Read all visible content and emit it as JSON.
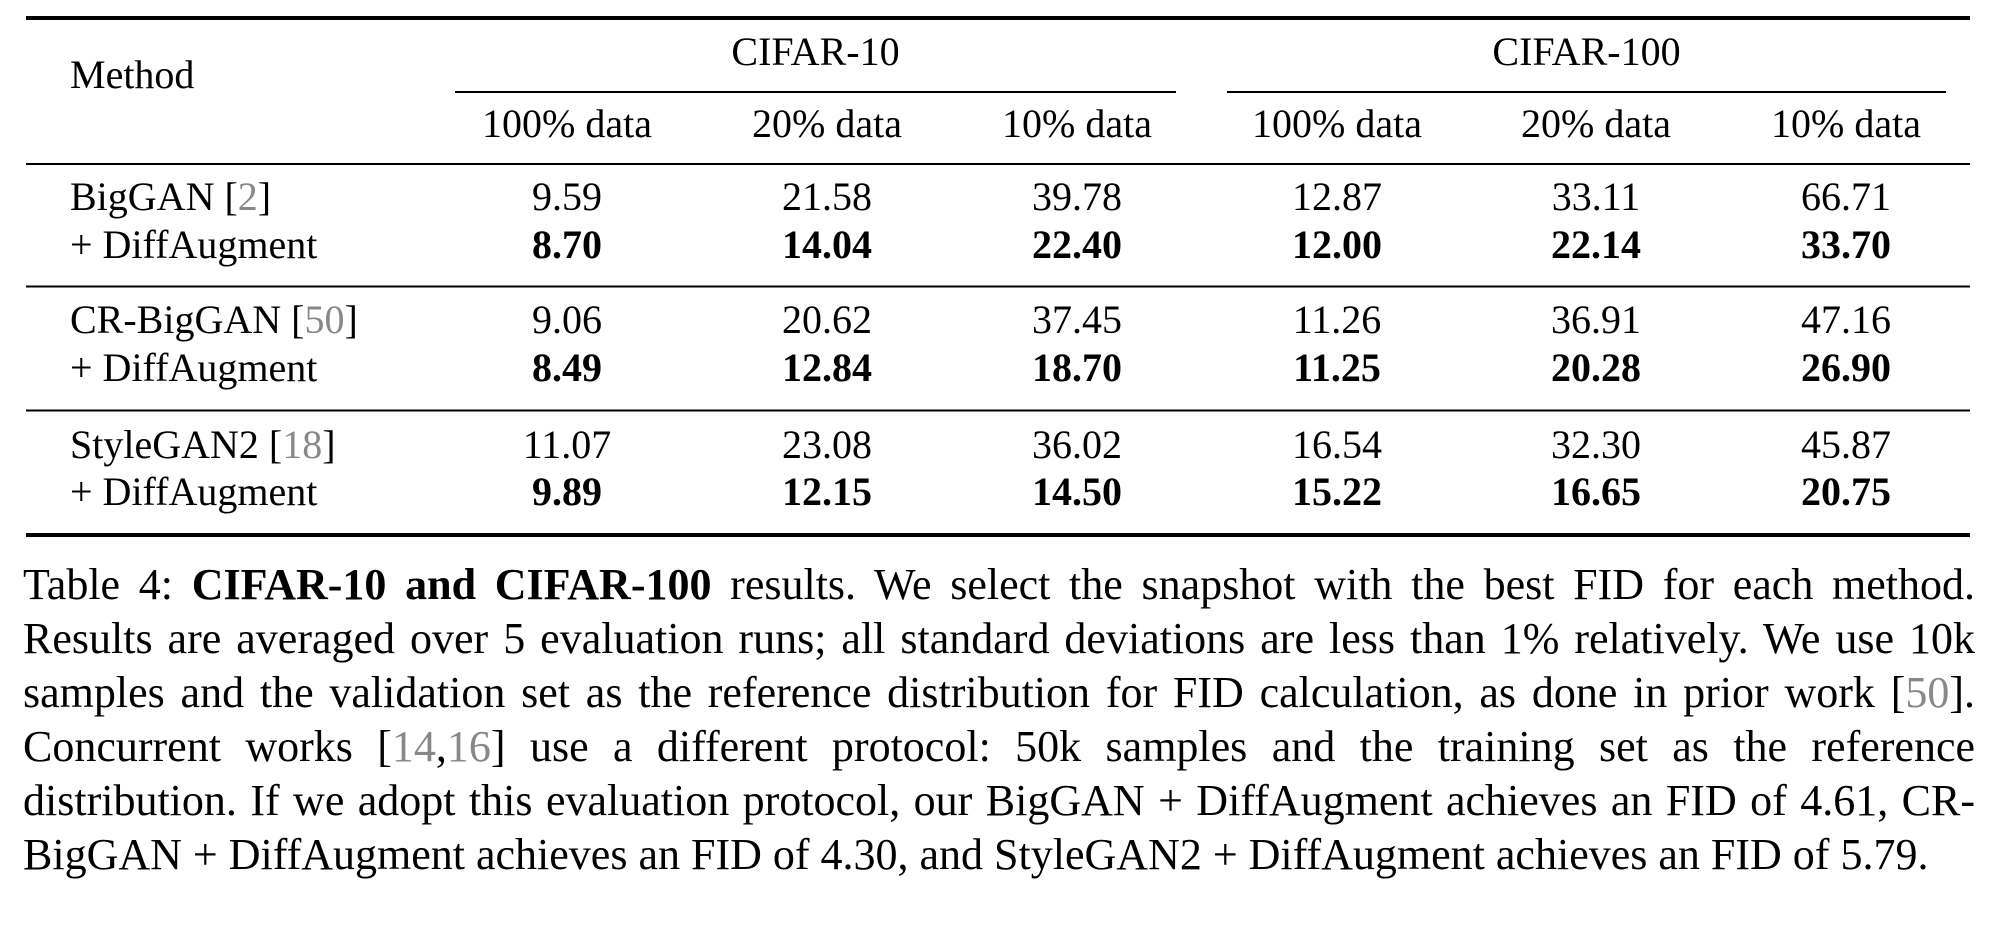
{
  "table": {
    "header": {
      "method": "Method",
      "groups": [
        "CIFAR-10",
        "CIFAR-100"
      ],
      "columns": [
        "100% data",
        "20% data",
        "10% data",
        "100% data",
        "20% data",
        "10% data"
      ]
    },
    "rows": [
      {
        "method": [
          "BigGAN [",
          "2",
          "]"
        ],
        "values": [
          "9.59",
          "21.58",
          "39.78",
          "12.87",
          "33.11",
          "66.71"
        ]
      },
      {
        "method": [
          "+ DiffAugment"
        ],
        "values": [
          "8.70",
          "14.04",
          "22.40",
          "12.00",
          "22.14",
          "33.70"
        ]
      },
      {
        "method": [
          "CR-BigGAN [",
          "50",
          "]"
        ],
        "values": [
          "9.06",
          "20.62",
          "37.45",
          "11.26",
          "36.91",
          "47.16"
        ]
      },
      {
        "method": [
          "+ DiffAugment"
        ],
        "values": [
          "8.49",
          "12.84",
          "18.70",
          "11.25",
          "20.28",
          "26.90"
        ]
      },
      {
        "method": [
          "StyleGAN2 [",
          "18",
          "]"
        ],
        "values": [
          "11.07",
          "23.08",
          "36.02",
          "16.54",
          "32.30",
          "45.87"
        ]
      },
      {
        "method": [
          "+ DiffAugment"
        ],
        "values": [
          "9.89",
          "12.15",
          "14.50",
          "15.22",
          "16.65",
          "20.75"
        ]
      }
    ]
  },
  "caption": [
    "Table 4: ",
    "CIFAR-10 and CIFAR-100",
    " results.  We select the snapshot with the best FID for each method. Results are averaged over 5 evaluation runs; all standard deviations are less than 1% relatively. We use 10k samples and the validation set as the reference distribution for FID calculation, as done in prior work [",
    "50",
    "]. Concurrent works [",
    "14",
    ",",
    "16",
    "] use a different protocol: 50k samples and the training set as the reference distribution. If we adopt this evaluation protocol, our BigGAN + DiffAugment achieves an FID of 4.61, CR-BigGAN + DiffAugment achieves an FID of 4.30, and StyleGAN2 + DiffAugment achieves an FID of 5.79."
  ]
}
